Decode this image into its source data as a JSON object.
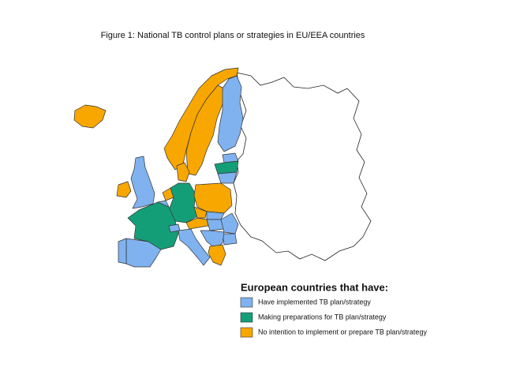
{
  "title": "Figure 1: National TB control plans or strategies in EU/EEA countries",
  "legend": {
    "title": "European countries that have:",
    "items": [
      {
        "label": "Have implemented TB plan/strategy",
        "color": "#7fb2ef"
      },
      {
        "label": "Making preparations for TB plan/strategy",
        "color": "#149e78"
      },
      {
        "label": "No intention to implement or prepare TB plan/strategy",
        "color": "#f7a700"
      }
    ]
  }
}
